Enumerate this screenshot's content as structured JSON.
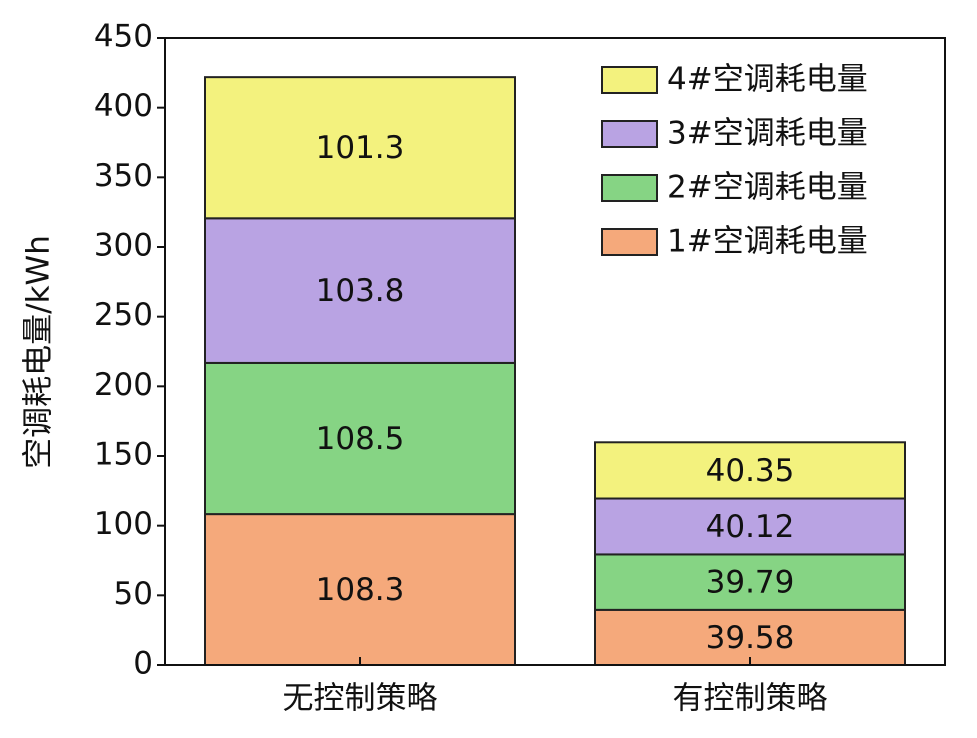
{
  "chart_data": {
    "type": "stacked_bar",
    "y_label": "空调耗电量/kWh",
    "categories": [
      "无控制策略",
      "有控制策略"
    ],
    "series": [
      {
        "name": "1#空调耗电量",
        "color": "#f5a97b",
        "values": [
          108.3,
          39.58
        ]
      },
      {
        "name": "2#空调耗电量",
        "color": "#86d484",
        "values": [
          108.5,
          39.79
        ]
      },
      {
        "name": "3#空调耗电量",
        "color": "#b9a3e3",
        "values": [
          103.8,
          40.12
        ]
      },
      {
        "name": "4#空调耗电量",
        "color": "#f3f27e",
        "values": [
          101.3,
          40.35
        ]
      }
    ],
    "ylim": [
      0,
      450
    ],
    "yticks": [
      0,
      50,
      100,
      150,
      200,
      250,
      300,
      350,
      400,
      450
    ],
    "legend": "upper right",
    "legend_order": "reversed"
  }
}
